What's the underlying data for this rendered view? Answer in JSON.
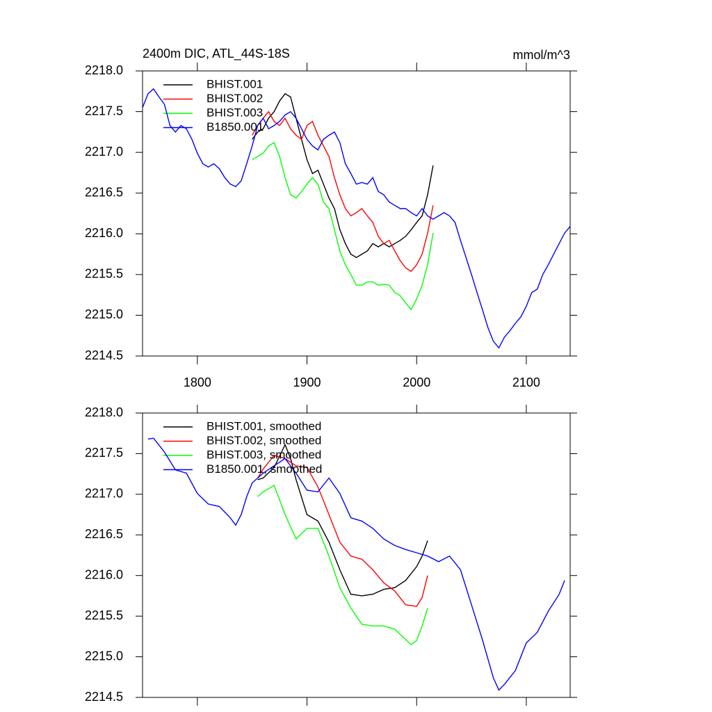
{
  "chart_data": [
    {
      "type": "line",
      "title": "2400m DIC, ATL_44S-18S",
      "units": "mmol/m^3",
      "xlim": [
        1750,
        2140
      ],
      "xticks": [
        1800,
        1900,
        2000,
        2100
      ],
      "xtick_labels": true,
      "ylim": [
        2214.5,
        2218
      ],
      "yticks": [
        {
          "value": 2214.5,
          "label": "2214.5"
        },
        {
          "value": 2215,
          "label": "2215.0"
        },
        2215.5,
        {
          "value": 2216,
          "label": "2216.0"
        },
        2216.5,
        {
          "value": 2217,
          "label": "2217.0"
        },
        2217.5,
        {
          "value": 2218,
          "label": "2218.0"
        }
      ],
      "legend": "upper left",
      "series": [
        {
          "name": "BHIST.001",
          "color": "#000000",
          "x": [
            1850,
            1855,
            1860,
            1865,
            1870,
            1875,
            1880,
            1885,
            1890,
            1895,
            1900,
            1905,
            1910,
            1915,
            1920,
            1925,
            1930,
            1935,
            1940,
            1945,
            1950,
            1955,
            1960,
            1965,
            1970,
            1975,
            1980,
            1985,
            1990,
            1995,
            2000,
            2005,
            2010,
            2015
          ],
          "values": [
            2217.16,
            2217.25,
            2217.29,
            2217.42,
            2217.5,
            2217.63,
            2217.72,
            2217.68,
            2217.42,
            2217.16,
            2216.91,
            2216.74,
            2216.78,
            2216.61,
            2216.44,
            2216.31,
            2216.05,
            2215.88,
            2215.75,
            2215.71,
            2215.75,
            2215.79,
            2215.88,
            2215.84,
            2215.88,
            2215.84,
            2215.88,
            2215.92,
            2215.97,
            2216.05,
            2216.14,
            2216.22,
            2216.48,
            2216.84
          ]
        },
        {
          "name": "BHIST.002",
          "color": "#ff0000",
          "x": [
            1850,
            1855,
            1860,
            1865,
            1870,
            1875,
            1880,
            1885,
            1890,
            1895,
            1900,
            1905,
            1910,
            1915,
            1920,
            1925,
            1930,
            1935,
            1940,
            1945,
            1950,
            1955,
            1960,
            1965,
            1970,
            1975,
            1980,
            1985,
            1990,
            1995,
            2000,
            2005,
            2010,
            2015
          ],
          "values": [
            2217.21,
            2217.33,
            2217.42,
            2217.5,
            2217.38,
            2217.33,
            2217.42,
            2217.29,
            2217.21,
            2217.16,
            2217.33,
            2217.38,
            2217.21,
            2217.08,
            2216.95,
            2216.69,
            2216.48,
            2216.31,
            2216.22,
            2216.26,
            2216.31,
            2216.22,
            2216.14,
            2215.97,
            2215.88,
            2215.92,
            2215.79,
            2215.67,
            2215.58,
            2215.54,
            2215.62,
            2215.75,
            2216.01,
            2216.35
          ]
        },
        {
          "name": "BHIST.003",
          "color": "#00ff00",
          "x": [
            1850,
            1855,
            1860,
            1865,
            1870,
            1875,
            1880,
            1885,
            1890,
            1895,
            1900,
            1905,
            1910,
            1915,
            1920,
            1925,
            1930,
            1935,
            1940,
            1945,
            1950,
            1955,
            1960,
            1965,
            1970,
            1975,
            1980,
            1985,
            1990,
            1995,
            2000,
            2005,
            2010,
            2015
          ],
          "values": [
            2216.91,
            2216.95,
            2216.99,
            2217.08,
            2217.12,
            2216.95,
            2216.69,
            2216.48,
            2216.44,
            2216.52,
            2216.61,
            2216.69,
            2216.61,
            2216.39,
            2216.31,
            2216.05,
            2215.79,
            2215.62,
            2215.5,
            2215.37,
            2215.37,
            2215.41,
            2215.41,
            2215.37,
            2215.38,
            2215.37,
            2215.28,
            2215.24,
            2215.15,
            2215.07,
            2215.2,
            2215.37,
            2215.62,
            2216.01
          ]
        },
        {
          "name": "B1850.001",
          "color": "#0000ff",
          "x": [
            1750,
            1755,
            1760,
            1765,
            1770,
            1775,
            1780,
            1785,
            1790,
            1795,
            1800,
            1805,
            1810,
            1815,
            1820,
            1825,
            1830,
            1835,
            1840,
            1845,
            1850,
            1855,
            1860,
            1865,
            1870,
            1875,
            1880,
            1885,
            1890,
            1895,
            1900,
            1905,
            1910,
            1915,
            1920,
            1925,
            1930,
            1935,
            1940,
            1945,
            1950,
            1955,
            1960,
            1965,
            1970,
            1975,
            1980,
            1985,
            1990,
            1995,
            2000,
            2005,
            2010,
            2015,
            2020,
            2025,
            2030,
            2035,
            2040,
            2045,
            2050,
            2055,
            2060,
            2065,
            2070,
            2075,
            2080,
            2085,
            2090,
            2095,
            2100,
            2105,
            2110,
            2115,
            2120,
            2125,
            2130,
            2135,
            2140
          ],
          "values": [
            2217.55,
            2217.72,
            2217.78,
            2217.68,
            2217.59,
            2217.33,
            2217.25,
            2217.33,
            2217.29,
            2217.16,
            2216.99,
            2216.86,
            2216.82,
            2216.86,
            2216.8,
            2216.69,
            2216.61,
            2216.58,
            2216.65,
            2216.86,
            2217.08,
            2217.33,
            2217.42,
            2217.29,
            2217.33,
            2217.38,
            2217.46,
            2217.5,
            2217.42,
            2217.29,
            2217.16,
            2217.08,
            2217.03,
            2217.16,
            2217.21,
            2217.25,
            2217.12,
            2216.86,
            2216.74,
            2216.61,
            2216.63,
            2216.61,
            2216.69,
            2216.52,
            2216.48,
            2216.39,
            2216.35,
            2216.31,
            2216.31,
            2216.26,
            2216.22,
            2216.31,
            2216.22,
            2216.18,
            2216.22,
            2216.26,
            2216.22,
            2216.14,
            2215.92,
            2215.71,
            2215.5,
            2215.28,
            2215.07,
            2214.85,
            2214.68,
            2214.6,
            2214.73,
            2214.81,
            2214.9,
            2214.98,
            2215.11,
            2215.28,
            2215.32,
            2215.5,
            2215.62,
            2215.75,
            2215.88,
            2216.01,
            2216.09
          ]
        }
      ]
    },
    {
      "type": "line",
      "xlim": [
        1750,
        2140
      ],
      "xticks": [
        1800,
        1900,
        2000,
        2100
      ],
      "xtick_labels": false,
      "ylim": [
        2214.5,
        2218
      ],
      "yticks": [
        {
          "value": 2214.5,
          "label": "2214.5"
        },
        {
          "value": 2215,
          "label": "2215.0"
        },
        2215.5,
        {
          "value": 2216,
          "label": "2216.0"
        },
        2216.5,
        {
          "value": 2217,
          "label": "2217.0"
        },
        2217.5,
        {
          "value": 2218,
          "label": "2218.0"
        }
      ],
      "legend": "upper left",
      "series": [
        {
          "name": "BHIST.001, smoothed",
          "color": "#000000",
          "x": [
            1855,
            1860,
            1870,
            1880,
            1885,
            1890,
            1900,
            1910,
            1920,
            1930,
            1940,
            1950,
            1960,
            1970,
            1980,
            1990,
            2000,
            2005,
            2010
          ],
          "values": [
            2217.18,
            2217.2,
            2217.33,
            2217.61,
            2217.44,
            2217.18,
            2216.75,
            2216.67,
            2216.41,
            2216.07,
            2215.77,
            2215.75,
            2215.77,
            2215.83,
            2215.85,
            2215.94,
            2216.11,
            2216.24,
            2216.43
          ]
        },
        {
          "name": "BHIST.002, smoothed",
          "color": "#ff0000",
          "x": [
            1855,
            1860,
            1870,
            1880,
            1890,
            1900,
            1910,
            1920,
            1930,
            1940,
            1950,
            1960,
            1970,
            1980,
            1990,
            2000,
            2005,
            2010
          ],
          "values": [
            2217.2,
            2217.31,
            2217.48,
            2217.44,
            2217.35,
            2217.33,
            2217.09,
            2216.75,
            2216.41,
            2216.24,
            2216.2,
            2216.07,
            2215.91,
            2215.81,
            2215.64,
            2215.62,
            2215.73,
            2216.0
          ]
        },
        {
          "name": "BHIST.003, smoothed",
          "color": "#00ff00",
          "x": [
            1855,
            1860,
            1870,
            1880,
            1890,
            1900,
            1910,
            1920,
            1930,
            1940,
            1950,
            1960,
            1970,
            1980,
            1990,
            1995,
            2000,
            2005,
            2010
          ],
          "values": [
            2216.97,
            2217.03,
            2217.11,
            2216.75,
            2216.45,
            2216.58,
            2216.58,
            2216.24,
            2215.85,
            2215.6,
            2215.4,
            2215.38,
            2215.38,
            2215.34,
            2215.21,
            2215.15,
            2215.2,
            2215.38,
            2215.6
          ]
        },
        {
          "name": "B1850.001, smoothed",
          "color": "#0000ff",
          "x": [
            1755,
            1760,
            1770,
            1780,
            1790,
            1800,
            1810,
            1820,
            1830,
            1835,
            1840,
            1845,
            1850,
            1860,
            1870,
            1880,
            1890,
            1900,
            1910,
            1920,
            1930,
            1940,
            1950,
            1960,
            1970,
            1980,
            1990,
            2000,
            2010,
            2020,
            2030,
            2040,
            2050,
            2060,
            2070,
            2075,
            2080,
            2090,
            2100,
            2110,
            2120,
            2130,
            2135
          ],
          "values": [
            2217.68,
            2217.69,
            2217.52,
            2217.3,
            2217.26,
            2217.01,
            2216.88,
            2216.85,
            2216.71,
            2216.62,
            2216.75,
            2216.97,
            2217.14,
            2217.26,
            2217.35,
            2217.44,
            2217.26,
            2217.05,
            2217.03,
            2217.2,
            2217.01,
            2216.71,
            2216.67,
            2216.58,
            2216.45,
            2216.37,
            2216.32,
            2216.28,
            2216.24,
            2216.17,
            2216.24,
            2216.07,
            2215.64,
            2215.21,
            2214.74,
            2214.59,
            2214.66,
            2214.83,
            2215.17,
            2215.3,
            2215.56,
            2215.77,
            2215.94
          ]
        }
      ]
    }
  ]
}
